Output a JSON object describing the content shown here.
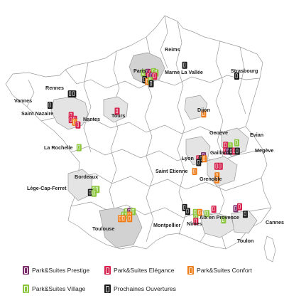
{
  "colors": {
    "prestige": "#7b2d6b",
    "elegance": "#d51f4a",
    "confort": "#ef7d1a",
    "village": "#8cc63f",
    "ouvertures": "#1a1a1a",
    "region_fill": "#e4e4e4",
    "region_highlight": "#d2d2d2",
    "border": "#9a9a9a"
  },
  "cities": {
    "reims": "Reims",
    "paris": "Paris",
    "marne": "Marne La Vallée",
    "strasbourg": "Strasbourg",
    "rennes": "Rennes",
    "vannes": "Vannes",
    "saint_nazaire": "Saint Nazaire",
    "nantes": "Nantes",
    "tours": "Tours",
    "dijon": "Dijon",
    "geneve": "Genève",
    "evian": "Evian",
    "la_rochelle": "La Rochelle",
    "gaillard": "Gaillard",
    "megeve": "Megève",
    "lyon": "Lyon",
    "saint_etienne": "Saint Etienne",
    "grenoble": "Grenoble",
    "bordeaux": "Bordeaux",
    "lege": "Lège-Cap-Ferret",
    "aix": "Aix en Provence",
    "nimes": "Nîmes",
    "montpellier": "Montpellier",
    "toulouse": "Toulouse",
    "cannes": "Cannes",
    "toulon": "Toulon"
  },
  "legend": {
    "prestige": "Park&Suites Prestige",
    "elegance": "Park&Suites Elégance",
    "confort": "Park&Suites Confort",
    "village": "Park&Suites Village",
    "ouvertures": "Prochaines Ouvertures"
  },
  "markers": [
    {
      "type": "ouvertures",
      "lon": 4.03,
      "lat": 49.26
    },
    {
      "type": "village",
      "lon": 2.0,
      "lat": 48.98
    },
    {
      "type": "prestige",
      "lon": 2.22,
      "lat": 49.0
    },
    {
      "type": "elegance",
      "lon": 2.36,
      "lat": 48.97
    },
    {
      "type": "village",
      "lon": 2.5,
      "lat": 49.02
    },
    {
      "type": "village",
      "lon": 2.62,
      "lat": 48.98
    },
    {
      "type": "elegance",
      "lon": 2.25,
      "lat": 48.86
    },
    {
      "type": "prestige",
      "lon": 2.4,
      "lat": 48.86
    },
    {
      "type": "elegance",
      "lon": 2.55,
      "lat": 48.86
    },
    {
      "type": "ouvertures",
      "lon": 2.06,
      "lat": 48.73
    },
    {
      "type": "confort",
      "lon": 2.2,
      "lat": 48.66
    },
    {
      "type": "village",
      "lon": 2.34,
      "lat": 48.7
    },
    {
      "type": "ouvertures",
      "lon": 2.38,
      "lat": 48.58
    },
    {
      "type": "ouvertures",
      "lon": 6.6,
      "lat": 48.86
    },
    {
      "type": "ouvertures",
      "lon": -1.61,
      "lat": 48.2
    },
    {
      "type": "ouvertures",
      "lon": -1.44,
      "lat": 48.2
    },
    {
      "type": "ouvertures",
      "lon": -2.61,
      "lat": 47.78
    },
    {
      "type": "elegance",
      "lon": -1.57,
      "lat": 47.4
    },
    {
      "type": "elegance",
      "lon": -1.57,
      "lat": 47.25
    },
    {
      "type": "elegance",
      "lon": -1.4,
      "lat": 47.26
    },
    {
      "type": "confort",
      "lon": -1.4,
      "lat": 47.15
    },
    {
      "type": "elegance",
      "lon": -1.23,
      "lat": 47.05
    },
    {
      "type": "elegance",
      "lon": 0.7,
      "lat": 47.56
    },
    {
      "type": "confort",
      "lon": 4.97,
      "lat": 47.46
    },
    {
      "type": "village",
      "lon": -1.18,
      "lat": 46.21
    },
    {
      "type": "elegance",
      "lon": 6.05,
      "lat": 46.3
    },
    {
      "type": "village",
      "lon": 6.28,
      "lat": 46.27
    },
    {
      "type": "village",
      "lon": 6.6,
      "lat": 46.39
    },
    {
      "type": "elegance",
      "lon": 6.05,
      "lat": 46.08
    },
    {
      "type": "prestige",
      "lon": 6.18,
      "lat": 46.08
    },
    {
      "type": "ouvertures",
      "lon": 6.33,
      "lat": 46.08
    },
    {
      "type": "elegance",
      "lon": 6.49,
      "lat": 46.08
    },
    {
      "type": "ouvertures",
      "lon": 6.63,
      "lat": 46.08
    },
    {
      "type": "prestige",
      "lon": 4.96,
      "lat": 45.91
    },
    {
      "type": "elegance",
      "lon": 4.72,
      "lat": 45.8
    },
    {
      "type": "ouvertures",
      "lon": 4.85,
      "lat": 45.8
    },
    {
      "type": "confort",
      "lon": 5.0,
      "lat": 45.8
    },
    {
      "type": "ouvertures",
      "lon": 4.72,
      "lat": 45.66
    },
    {
      "type": "elegance",
      "lon": 5.62,
      "lat": 45.52
    },
    {
      "type": "elegance",
      "lon": 5.79,
      "lat": 45.52
    },
    {
      "type": "confort",
      "lon": 4.52,
      "lat": 45.33
    },
    {
      "type": "confort",
      "lon": 5.63,
      "lat": 45.17
    },
    {
      "type": "confort",
      "lon": 5.62,
      "lat": 45.02
    },
    {
      "type": "village",
      "lon": -0.44,
      "lat": 44.66
    },
    {
      "type": "village",
      "lon": -0.29,
      "lat": 44.66
    },
    {
      "type": "ouvertures",
      "lon": -0.62,
      "lat": 44.55
    },
    {
      "type": "village",
      "lon": -0.44,
      "lat": 44.52
    },
    {
      "type": "ouvertures",
      "lon": 4.03,
      "lat": 43.99
    },
    {
      "type": "elegance",
      "lon": 5.47,
      "lat": 43.93
    },
    {
      "type": "ouvertures",
      "lon": 4.18,
      "lat": 43.85
    },
    {
      "type": "village",
      "lon": 4.56,
      "lat": 43.81
    },
    {
      "type": "confort",
      "lon": 4.77,
      "lat": 43.81
    },
    {
      "type": "village",
      "lon": 5.13,
      "lat": 43.77
    },
    {
      "type": "prestige",
      "lon": 6.55,
      "lat": 43.95
    },
    {
      "type": "elegance",
      "lon": 6.74,
      "lat": 44.02
    },
    {
      "type": "village",
      "lon": 1.15,
      "lat": 43.83
    },
    {
      "type": "prestige",
      "lon": 1.32,
      "lat": 43.84
    },
    {
      "type": "village",
      "lon": 1.49,
      "lat": 43.84
    },
    {
      "type": "village",
      "lon": 1.02,
      "lat": 43.71
    },
    {
      "type": "village",
      "lon": 1.17,
      "lat": 43.71
    },
    {
      "type": "confort",
      "lon": 1.32,
      "lat": 43.71
    },
    {
      "type": "confort",
      "lon": 0.86,
      "lat": 43.58
    },
    {
      "type": "confort",
      "lon": 1.02,
      "lat": 43.58
    },
    {
      "type": "confort",
      "lon": 1.32,
      "lat": 43.58
    },
    {
      "type": "village",
      "lon": 4.58,
      "lat": 43.61
    },
    {
      "type": "elegance",
      "lon": 4.58,
      "lat": 43.48
    },
    {
      "type": "village",
      "lon": 5.95,
      "lat": 43.53
    },
    {
      "type": "ouvertures",
      "lon": 7.02,
      "lat": 43.74
    }
  ]
}
